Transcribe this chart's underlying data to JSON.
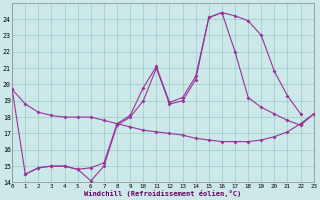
{
  "xlabel": "Windchill (Refroidissement éolien,°C)",
  "background_color": "#cce8e8",
  "grid_color": "#99cccc",
  "line_color": "#993399",
  "xlim_min": 0,
  "xlim_max": 23,
  "ylim_min": 14,
  "ylim_max": 25,
  "line1_x": [
    0,
    1,
    2,
    3,
    4,
    5,
    6,
    7,
    8,
    9,
    10,
    11,
    12,
    13,
    14,
    15,
    16,
    17,
    18,
    19,
    20,
    21,
    22,
    23
  ],
  "line1_y": [
    19.7,
    18.8,
    18.3,
    18.1,
    18.0,
    18.0,
    18.0,
    17.8,
    17.6,
    17.4,
    17.2,
    17.1,
    17.0,
    16.9,
    16.7,
    16.6,
    16.5,
    16.5,
    16.5,
    16.6,
    16.8,
    17.1,
    17.6,
    18.2
  ],
  "line2_x": [
    0,
    1,
    2,
    3,
    4,
    5,
    6,
    7,
    8,
    9,
    10,
    11,
    12,
    13,
    14,
    15,
    16,
    17,
    18,
    19,
    20,
    21,
    22
  ],
  "line2_y": [
    19.7,
    14.5,
    14.9,
    15.0,
    15.0,
    14.8,
    14.1,
    15.0,
    17.5,
    18.0,
    19.0,
    21.0,
    18.8,
    19.0,
    20.3,
    24.1,
    24.4,
    24.2,
    23.9,
    23.0,
    20.8,
    19.3,
    18.2
  ],
  "line3_x": [
    1,
    2,
    3,
    4,
    5,
    6,
    7,
    8,
    9,
    10,
    11,
    12,
    13,
    14,
    15,
    16,
    17,
    18,
    19,
    20,
    21,
    22,
    23
  ],
  "line3_y": [
    14.5,
    14.9,
    15.0,
    15.0,
    14.8,
    14.9,
    15.2,
    17.6,
    18.1,
    19.8,
    21.1,
    18.9,
    19.2,
    20.5,
    24.1,
    24.4,
    22.0,
    19.2,
    18.6,
    18.2,
    17.8,
    17.5,
    18.2
  ]
}
